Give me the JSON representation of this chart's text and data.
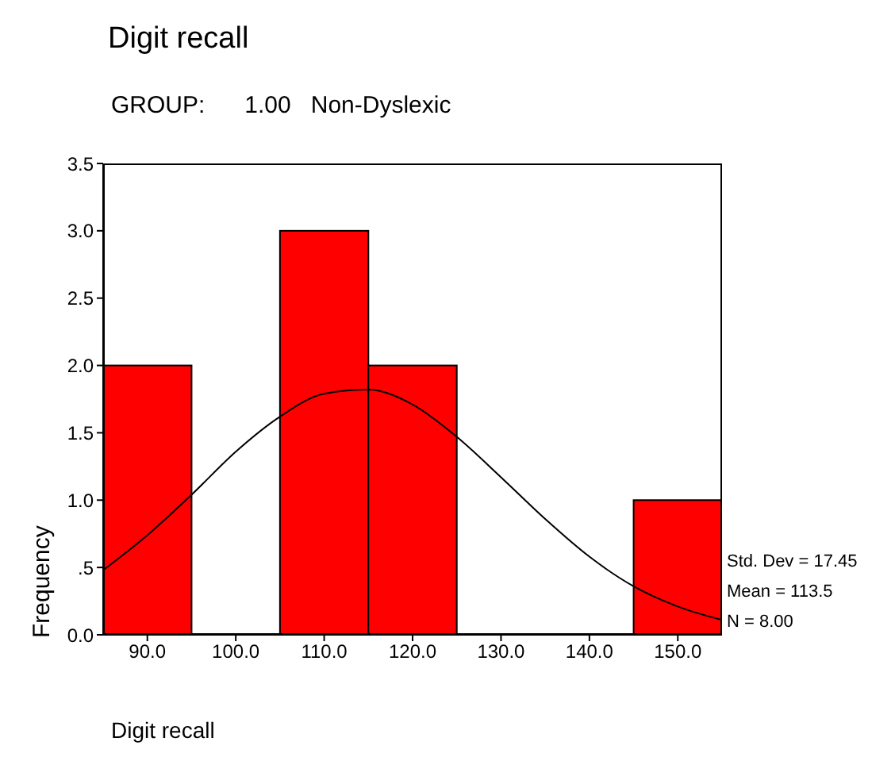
{
  "chart_data": {
    "type": "histogram",
    "title": "Digit recall",
    "subtitle": "GROUP:      1.00   Non-Dyslexic",
    "xlabel": "Digit recall",
    "ylabel": "Frequency",
    "bins": [
      85,
      95,
      105,
      115,
      125,
      135,
      145,
      155
    ],
    "values": [
      2,
      0,
      3,
      2,
      0,
      0,
      1
    ],
    "color": "#ff0000",
    "series": [
      {
        "type": "line",
        "color": "#000000",
        "x": [
          85,
          90,
          95,
          100,
          105,
          110,
          115,
          120,
          125,
          130,
          135,
          140,
          145,
          150,
          155
        ],
        "values": [
          0.48,
          0.74,
          1.04,
          1.36,
          1.62,
          1.79,
          1.82,
          1.71,
          1.47,
          1.17,
          0.86,
          0.58,
          0.36,
          0.21,
          0.11
        ]
      }
    ],
    "xlim": [
      85,
      155
    ],
    "xticks": [
      {
        "value": 90,
        "label": "90.0"
      },
      {
        "value": 100,
        "label": "100.0"
      },
      {
        "value": 110,
        "label": "110.0"
      },
      {
        "value": 120,
        "label": "120.0"
      },
      {
        "value": 130,
        "label": "130.0"
      },
      {
        "value": 140,
        "label": "140.0"
      },
      {
        "value": 150,
        "label": "150.0"
      }
    ],
    "ylim": [
      0,
      3.5
    ],
    "yticks": [
      {
        "value": 0,
        "label": "0.0"
      },
      {
        "value": 0.5,
        "label": ".5"
      },
      {
        "value": 1,
        "label": "1.0"
      },
      {
        "value": 1.5,
        "label": "1.5"
      },
      {
        "value": 2,
        "label": "2.0"
      },
      {
        "value": 2.5,
        "label": "2.5"
      },
      {
        "value": 3,
        "label": "3.0"
      },
      {
        "value": 3.5,
        "label": "3.5"
      }
    ],
    "annotations": [
      "Std. Dev = 17.45",
      "Mean = 113.5",
      "N = 8.00"
    ],
    "grid": false,
    "legend": false,
    "marker": "none",
    "line_style": "solid"
  }
}
